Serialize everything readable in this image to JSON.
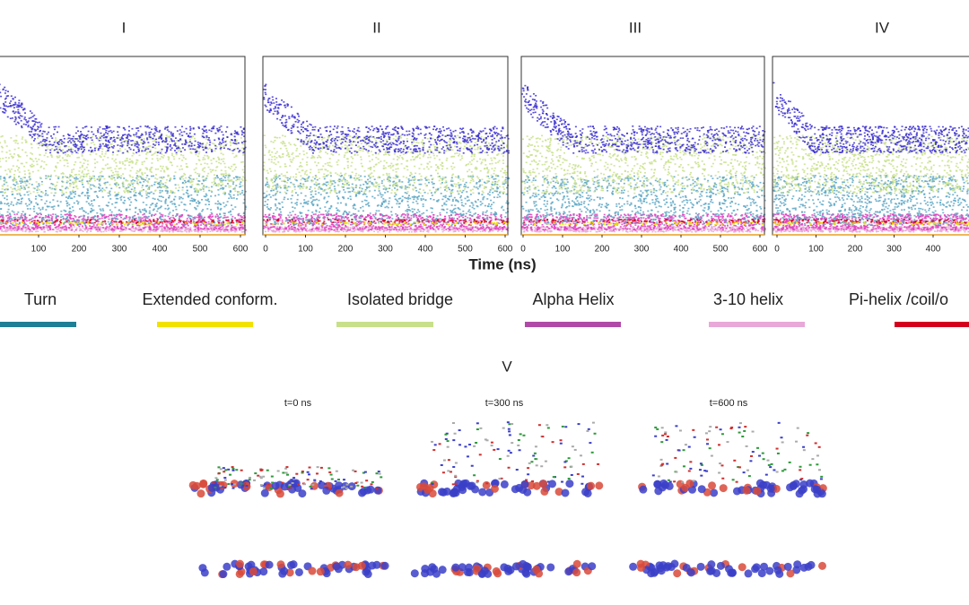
{
  "panels": [
    {
      "label": "I",
      "xticks": [
        100,
        200,
        300,
        400,
        500,
        600
      ]
    },
    {
      "label": "II",
      "xticks": [
        0,
        100,
        200,
        300,
        400,
        500,
        600
      ]
    },
    {
      "label": "III",
      "xticks": [
        0,
        100,
        200,
        300,
        400,
        500,
        600
      ]
    },
    {
      "label": "IV",
      "xticks": [
        0,
        100,
        200,
        300,
        400
      ]
    }
  ],
  "x_axis_label": "Time (ns)",
  "legend": [
    {
      "label": "Turn",
      "color": "#1e7f96"
    },
    {
      "label": "Extended conform.",
      "color": "#f2e200"
    },
    {
      "label": "Isolated bridge",
      "color": "#c8e08a"
    },
    {
      "label": "Alpha Helix",
      "color": "#b04aa8"
    },
    {
      "label": "3-10 helix",
      "color": "#e8a8d8"
    },
    {
      "label": "Pi-helix /coil/o",
      "color": "#d4001e"
    }
  ],
  "snapshots": {
    "label": "V",
    "times": [
      "t=0 ns",
      "t=300 ns",
      "t=600 ns"
    ]
  }
}
